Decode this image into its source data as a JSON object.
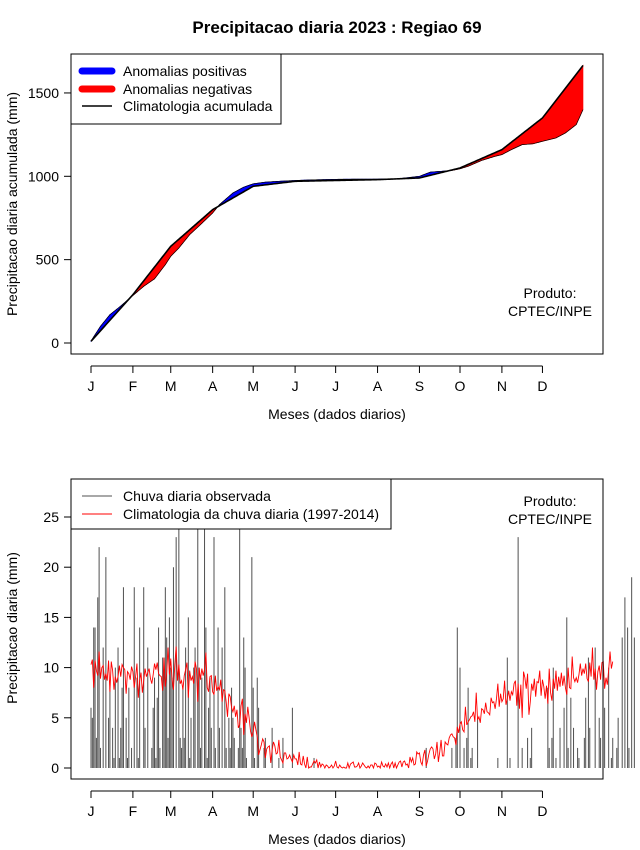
{
  "title": "Precipitacao diaria 2023 : Regiao 69",
  "chart_data": [
    {
      "type": "area",
      "ylabel": "Precipitacao diaria acumulada (mm)",
      "xlabel": "Meses (dados diarios)",
      "ylim": [
        0,
        1700
      ],
      "yticks": [
        0,
        500,
        1000,
        1500
      ],
      "months": [
        "J",
        "F",
        "M",
        "A",
        "M",
        "J",
        "J",
        "A",
        "S",
        "O",
        "N",
        "D"
      ],
      "legend": [
        {
          "label": "Anomalias positivas",
          "color": "#0000ff"
        },
        {
          "label": "Anomalias negativas",
          "color": "#ff0000"
        },
        {
          "label": "Climatologia acumulada",
          "color": "#000000"
        }
      ],
      "product": [
        "Produto:",
        "CPTEC/INPE"
      ],
      "climatology": {
        "day": [
          1,
          32,
          60,
          91,
          121,
          152,
          182,
          213,
          244,
          274,
          305,
          335,
          365
        ],
        "value": [
          10,
          290,
          580,
          800,
          940,
          970,
          975,
          980,
          990,
          1050,
          1160,
          1350,
          1665
        ]
      },
      "observed": {
        "day": [
          1,
          8,
          15,
          22,
          32,
          40,
          48,
          56,
          60,
          66,
          74,
          82,
          91,
          96,
          106,
          114,
          121,
          130,
          140,
          152,
          162,
          172,
          182,
          196,
          213,
          228,
          244,
          252,
          260,
          268,
          274,
          280,
          290,
          300,
          305,
          312,
          320,
          328,
          335,
          345,
          352,
          360,
          365
        ],
        "value": [
          12,
          100,
          170,
          215,
          285,
          340,
          385,
          470,
          520,
          570,
          650,
          710,
          780,
          830,
          900,
          935,
          955,
          965,
          970,
          975,
          978,
          980,
          982,
          983,
          983,
          985,
          1000,
          1025,
          1030,
          1035,
          1045,
          1060,
          1095,
          1120,
          1130,
          1160,
          1190,
          1195,
          1210,
          1230,
          1260,
          1310,
          1400
        ]
      }
    },
    {
      "type": "bar",
      "ylabel": "Precipitacao diaria (mm)",
      "xlabel": "Meses (dados diarios)",
      "ylim": [
        0,
        28
      ],
      "yticks": [
        0,
        5,
        10,
        15,
        20,
        25
      ],
      "months": [
        "J",
        "F",
        "M",
        "A",
        "M",
        "J",
        "J",
        "A",
        "S",
        "O",
        "N",
        "D"
      ],
      "legend": [
        {
          "label": "Chuva diaria observada",
          "color": "#505050"
        },
        {
          "label": "Climatologia da chuva diaria (1997-2014)",
          "color": "#ff0000"
        }
      ],
      "product": [
        "Produto:",
        "CPTEC/INPE"
      ],
      "observed_daily_mm": [
        6,
        5,
        14,
        14,
        3,
        17,
        22,
        2,
        0,
        12,
        0,
        21,
        0,
        5,
        8,
        0,
        4,
        1,
        10,
        0,
        12,
        1,
        4,
        8,
        18,
        0,
        5,
        1,
        8,
        0,
        2,
        0,
        18,
        0,
        9,
        1,
        14,
        0,
        0,
        18,
        4,
        0,
        12,
        0,
        0,
        2,
        6,
        9,
        1,
        7,
        14,
        2,
        0,
        11,
        10,
        18,
        13,
        3,
        15,
        10,
        9,
        20,
        0,
        23,
        0,
        25,
        3,
        2,
        8,
        3,
        12,
        0,
        15,
        1,
        5,
        0,
        10,
        12,
        0,
        24,
        10,
        2,
        9,
        0,
        25,
        14,
        1,
        6,
        9,
        4,
        0,
        23,
        2,
        0,
        14,
        4,
        0,
        12,
        0,
        18,
        2,
        0,
        5,
        2,
        8,
        5,
        3,
        0,
        0,
        2,
        26,
        4,
        2,
        13,
        10,
        1,
        0,
        0,
        0,
        21,
        8,
        1,
        0,
        9,
        6,
        0,
        0,
        0,
        2,
        3,
        0,
        0,
        0,
        0,
        4,
        0,
        0,
        0,
        0,
        1,
        0,
        0,
        3,
        0,
        0,
        0,
        0,
        0,
        0,
        6,
        0,
        0,
        0,
        0,
        0,
        0,
        0,
        0,
        0,
        0,
        0,
        0,
        0,
        0,
        0,
        1,
        0,
        0,
        0,
        0,
        0,
        0,
        0,
        0,
        0,
        0,
        0,
        0,
        0,
        0,
        0,
        0,
        0,
        0,
        0,
        0,
        0,
        0,
        0,
        0,
        0,
        0,
        0,
        0,
        0,
        0,
        0,
        0,
        0,
        0,
        0,
        0,
        0,
        0,
        0,
        0,
        0,
        0,
        0,
        0,
        0,
        0,
        0,
        0,
        0,
        0,
        0,
        0,
        0,
        0,
        0,
        0,
        0,
        0,
        0,
        0,
        0,
        0,
        0,
        0,
        0,
        0,
        0,
        0,
        0,
        0,
        0,
        0,
        0,
        0,
        0,
        0,
        0,
        0,
        0,
        0,
        0,
        0,
        2,
        0,
        0,
        0,
        0,
        0,
        0,
        0,
        0,
        0,
        0,
        0,
        0,
        0,
        0,
        0,
        0,
        0,
        0,
        2,
        0,
        0,
        3,
        14,
        0,
        10,
        0,
        0,
        2,
        0,
        3,
        8,
        0,
        1,
        2,
        0,
        0,
        0,
        5,
        0,
        0,
        0,
        0,
        0,
        0,
        0,
        0,
        0,
        0,
        0,
        0,
        0,
        0,
        1,
        0,
        0,
        0,
        0,
        0,
        0,
        11,
        0,
        1,
        0,
        0,
        0,
        0,
        0,
        23,
        0,
        0,
        2,
        0,
        0,
        0,
        3,
        0,
        1,
        4,
        0,
        0,
        0,
        0,
        0,
        0,
        0,
        0,
        0,
        0,
        0,
        8,
        2,
        0,
        3,
        10,
        0,
        1,
        0,
        0,
        4,
        0,
        0,
        6,
        0,
        15,
        2,
        0,
        7,
        0,
        4,
        0,
        0,
        2,
        1,
        0,
        0,
        0,
        3,
        7,
        0,
        11,
        4,
        0,
        0,
        0,
        12,
        0,
        0,
        5,
        3,
        0,
        0,
        6,
        0,
        0,
        10,
        0,
        1,
        3,
        0,
        0,
        2,
        5,
        0,
        0,
        13,
        0,
        17,
        0,
        14,
        2,
        0,
        19,
        0,
        13
      ],
      "climatology_daily_mm": [
        10.3,
        10.8,
        8.0,
        10.7,
        9.7,
        9.2,
        11.6,
        8.9,
        10.0,
        10.2,
        8.8,
        9.4,
        8.7,
        10.7,
        7.6,
        10.6,
        9.7,
        7.8,
        9.1,
        8.5,
        9.1,
        10.2,
        9.1,
        10.3,
        10.0,
        9.8,
        7.4,
        9.6,
        9.4,
        8.8,
        10.1,
        9.6,
        8.0,
        9.1,
        10.4,
        7.0,
        8.7,
        9.5,
        7.5,
        8.7,
        9.9,
        9.1,
        9.5,
        9.9,
        8.9,
        8.4,
        9.3,
        10.4,
        9.8,
        10.5,
        9.4,
        9.2,
        9.1,
        7.7,
        11.0,
        8.1,
        9.5,
        12.0,
        9.3,
        10.9,
        8.8,
        7.8,
        10.3,
        12.1,
        8.7,
        10.3,
        8.4,
        8.7,
        7.8,
        9.2,
        9.8,
        10.5,
        7.0,
        9.7,
        8.7,
        9.1,
        8.4,
        10.6,
        9.9,
        6.6,
        10.0,
        8.8,
        9.9,
        9.2,
        9.8,
        11.5,
        8.0,
        7.6,
        9.1,
        9.2,
        7.6,
        7.3,
        9.2,
        7.7,
        8.1,
        7.8,
        8.8,
        6.6,
        7.8,
        7.7,
        6.6,
        5.1,
        7.4,
        7.1,
        6.0,
        5.6,
        6.2,
        5.1,
        5.8,
        4.0,
        4.3,
        6.2,
        6.9,
        3.3,
        5.4,
        4.5,
        6.1,
        5.0,
        3.7,
        3.1,
        3.6,
        4.6,
        3.8,
        3.1,
        1.3,
        1.8,
        2.3,
        2.9,
        2.6,
        1.0,
        1.9,
        2.1,
        2.2,
        0.5,
        1.8,
        2.6,
        2.2,
        1.4,
        1.5,
        2.8,
        1.1,
        0.8,
        0.5,
        1.5,
        1.5,
        0.9,
        1.0,
        1.3,
        0.9,
        0.6,
        1.3,
        0.9,
        0.9,
        0.3,
        1.6,
        0.4,
        0.3,
        1.2,
        0.4,
        0.0,
        1.1,
        0.0,
        0.1,
        0.1,
        0.4,
        0.7,
        0.5,
        0.8,
        0.0,
        0.6,
        0.1,
        0.4,
        0.3,
        0.0,
        0.3,
        0.2,
        0.0,
        0.1,
        0.3,
        0.0,
        0.2,
        0.7,
        0.1,
        0.0,
        0.3,
        0.1,
        0.0,
        0.1,
        0.0,
        0.0,
        0.5,
        0.0,
        0.4,
        0.5,
        0.6,
        0.1,
        0.1,
        0.2,
        0.5,
        0.0,
        0.2,
        0.5,
        0.3,
        0.1,
        0.0,
        0.2,
        0.0,
        0.3,
        0.3,
        0.0,
        0.5,
        0.4,
        0.1,
        0.2,
        0.0,
        0.6,
        0.2,
        0.1,
        0.4,
        0.1,
        0.5,
        0.0,
        0.4,
        0.6,
        0.0,
        0.5,
        0.0,
        0.3,
        0.6,
        0.7,
        0.1,
        0.6,
        0.7,
        0.3,
        0.4,
        0.0,
        1.1,
        0.6,
        1.0,
        0.3,
        0.4,
        1.6,
        1.4,
        1.5,
        0.6,
        0.3,
        1.3,
        1.8,
        0.2,
        0.7,
        1.4,
        1.9,
        2.1,
        1.9,
        0.9,
        1.4,
        2.6,
        0.6,
        1.6,
        2.8,
        1.2,
        1.2,
        2.6,
        2.4,
        2.3,
        3.0,
        3.3,
        3.4,
        3.1,
        3.0,
        2.3,
        4.1,
        3.5,
        4.4,
        4.6,
        3.8,
        3.6,
        6.1,
        4.3,
        4.6,
        4.8,
        5.1,
        5.2,
        5.6,
        4.6,
        7.5,
        4.8,
        5.1,
        4.5,
        5.9,
        5.8,
        5.4,
        6.5,
        5.6,
        5.5,
        5.3,
        7.0,
        6.5,
        6.6,
        5.9,
        6.9,
        8.4,
        6.1,
        7.4,
        6.6,
        6.9,
        8.7,
        6.3,
        6.9,
        7.7,
        6.7,
        7.6,
        7.3,
        8.4,
        8.7,
        6.2,
        8.4,
        5.9,
        8.3,
        5.0,
        9.6,
        9.0,
        7.9,
        9.4,
        5.3,
        6.6,
        8.4,
        7.7,
        8.9,
        7.1,
        8.6,
        8.5,
        9.7,
        7.2,
        8.8,
        8.1,
        6.9,
        8.2,
        6.4,
        9.9,
        7.5,
        6.7,
        8.9,
        7.9,
        9.7,
        7.7,
        9.1,
        8.1,
        9.5,
        8.2,
        9.2,
        8.0,
        7.3,
        10.0,
        8.0,
        7.9,
        11.1,
        9.0,
        8.6,
        9.0,
        8.5,
        9.3,
        10.4,
        9.2,
        9.9,
        9.4,
        10.4,
        8.9,
        8.6,
        10.5,
        9.1,
        12.0,
        8.8,
        9.9,
        7.8,
        9.6,
        10.2,
        8.8,
        10.5,
        10.6,
        7.9,
        9.0,
        8.3,
        9.8,
        11.6,
        9.9,
        10.6
      ]
    }
  ]
}
